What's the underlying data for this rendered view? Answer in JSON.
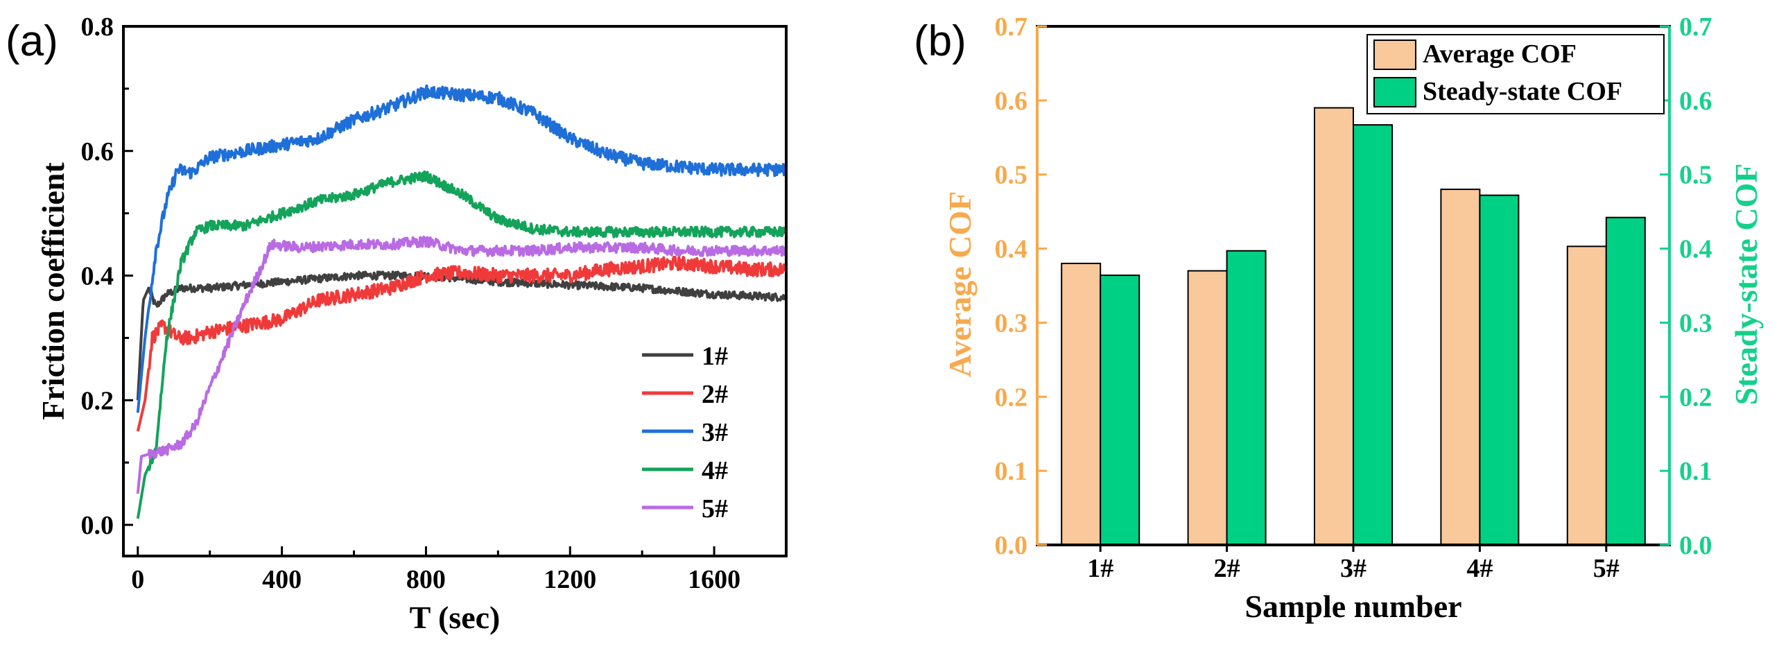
{
  "chart_data": [
    {
      "panel_label": "(a)",
      "type": "line",
      "xlabel": "T (sec)",
      "ylabel": "Friction coefficient",
      "xlim": [
        -40,
        1800
      ],
      "ylim": [
        -0.05,
        0.8
      ],
      "xticks": [
        0,
        400,
        800,
        1200,
        1600
      ],
      "yticks": [
        0.0,
        0.2,
        0.4,
        0.6,
        0.8
      ],
      "xtick_labels": [
        "0",
        "400",
        "800",
        "1200",
        "1600"
      ],
      "ytick_labels": [
        "0.0",
        "0.2",
        "0.4",
        "0.6",
        "0.8"
      ],
      "legend_position": "bottom-right",
      "series": [
        {
          "name": "1#",
          "color": "#404040",
          "noise": 0.006,
          "points": [
            [
              0,
              0.2
            ],
            [
              15,
              0.36
            ],
            [
              30,
              0.38
            ],
            [
              50,
              0.35
            ],
            [
              80,
              0.37
            ],
            [
              120,
              0.38
            ],
            [
              200,
              0.38
            ],
            [
              300,
              0.385
            ],
            [
              400,
              0.39
            ],
            [
              600,
              0.4
            ],
            [
              800,
              0.4
            ],
            [
              1000,
              0.39
            ],
            [
              1200,
              0.385
            ],
            [
              1400,
              0.38
            ],
            [
              1600,
              0.37
            ],
            [
              1800,
              0.365
            ]
          ]
        },
        {
          "name": "2#",
          "color": "#f03a3a",
          "noise": 0.011,
          "points": [
            [
              0,
              0.15
            ],
            [
              20,
              0.2
            ],
            [
              40,
              0.3
            ],
            [
              70,
              0.32
            ],
            [
              90,
              0.31
            ],
            [
              110,
              0.3
            ],
            [
              150,
              0.3
            ],
            [
              200,
              0.31
            ],
            [
              300,
              0.32
            ],
            [
              400,
              0.33
            ],
            [
              500,
              0.36
            ],
            [
              600,
              0.37
            ],
            [
              700,
              0.38
            ],
            [
              800,
              0.4
            ],
            [
              900,
              0.405
            ],
            [
              1000,
              0.4
            ],
            [
              1100,
              0.4
            ],
            [
              1200,
              0.4
            ],
            [
              1300,
              0.41
            ],
            [
              1400,
              0.415
            ],
            [
              1500,
              0.42
            ],
            [
              1600,
              0.415
            ],
            [
              1700,
              0.41
            ],
            [
              1800,
              0.41
            ]
          ]
        },
        {
          "name": "3#",
          "color": "#1f6fd8",
          "noise": 0.01,
          "points": [
            [
              0,
              0.18
            ],
            [
              20,
              0.3
            ],
            [
              50,
              0.44
            ],
            [
              80,
              0.52
            ],
            [
              110,
              0.57
            ],
            [
              150,
              0.565
            ],
            [
              200,
              0.59
            ],
            [
              300,
              0.6
            ],
            [
              400,
              0.61
            ],
            [
              500,
              0.62
            ],
            [
              600,
              0.65
            ],
            [
              700,
              0.67
            ],
            [
              800,
              0.695
            ],
            [
              900,
              0.69
            ],
            [
              1000,
              0.685
            ],
            [
              1100,
              0.66
            ],
            [
              1200,
              0.62
            ],
            [
              1300,
              0.595
            ],
            [
              1400,
              0.58
            ],
            [
              1500,
              0.575
            ],
            [
              1600,
              0.57
            ],
            [
              1700,
              0.57
            ],
            [
              1800,
              0.57
            ]
          ]
        },
        {
          "name": "4#",
          "color": "#14a35a",
          "noise": 0.008,
          "points": [
            [
              0,
              0.01
            ],
            [
              20,
              0.08
            ],
            [
              50,
              0.12
            ],
            [
              80,
              0.3
            ],
            [
              120,
              0.42
            ],
            [
              160,
              0.47
            ],
            [
              200,
              0.48
            ],
            [
              300,
              0.48
            ],
            [
              400,
              0.5
            ],
            [
              500,
              0.52
            ],
            [
              600,
              0.53
            ],
            [
              700,
              0.55
            ],
            [
              800,
              0.56
            ],
            [
              900,
              0.53
            ],
            [
              1000,
              0.49
            ],
            [
              1100,
              0.475
            ],
            [
              1200,
              0.47
            ],
            [
              1300,
              0.47
            ],
            [
              1400,
              0.47
            ],
            [
              1500,
              0.47
            ],
            [
              1600,
              0.47
            ],
            [
              1700,
              0.47
            ],
            [
              1800,
              0.47
            ]
          ]
        },
        {
          "name": "5#",
          "color": "#b96be3",
          "noise": 0.008,
          "points": [
            [
              0,
              0.05
            ],
            [
              10,
              0.11
            ],
            [
              40,
              0.115
            ],
            [
              80,
              0.12
            ],
            [
              120,
              0.13
            ],
            [
              160,
              0.16
            ],
            [
              200,
              0.22
            ],
            [
              250,
              0.29
            ],
            [
              300,
              0.36
            ],
            [
              340,
              0.41
            ],
            [
              370,
              0.45
            ],
            [
              450,
              0.445
            ],
            [
              600,
              0.45
            ],
            [
              700,
              0.45
            ],
            [
              800,
              0.455
            ],
            [
              900,
              0.44
            ],
            [
              1000,
              0.44
            ],
            [
              1100,
              0.44
            ],
            [
              1200,
              0.445
            ],
            [
              1300,
              0.445
            ],
            [
              1400,
              0.445
            ],
            [
              1500,
              0.44
            ],
            [
              1600,
              0.44
            ],
            [
              1700,
              0.44
            ],
            [
              1800,
              0.44
            ]
          ]
        }
      ]
    },
    {
      "panel_label": "(b)",
      "type": "bar",
      "xlabel": "Sample number",
      "ylabel_left": "Average COF",
      "ylabel_right": "Steady-state COF",
      "categories": [
        "1#",
        "2#",
        "3#",
        "4#",
        "5#"
      ],
      "ylim": [
        0.0,
        0.7
      ],
      "yticks": [
        0.0,
        0.1,
        0.2,
        0.3,
        0.4,
        0.5,
        0.6,
        0.7
      ],
      "ytick_labels": [
        "0.0",
        "0.1",
        "0.2",
        "0.3",
        "0.4",
        "0.5",
        "0.6",
        "0.7"
      ],
      "left_axis_color": "#f7a94d",
      "right_axis_color": "#14d18a",
      "legend_position": "top-right",
      "series": [
        {
          "name": "Average COF",
          "color": "#f9c89b",
          "values": [
            0.38,
            0.37,
            0.59,
            0.48,
            0.403
          ]
        },
        {
          "name": "Steady-state COF",
          "color": "#00d084",
          "values": [
            0.364,
            0.397,
            0.567,
            0.472,
            0.442
          ]
        }
      ]
    }
  ]
}
